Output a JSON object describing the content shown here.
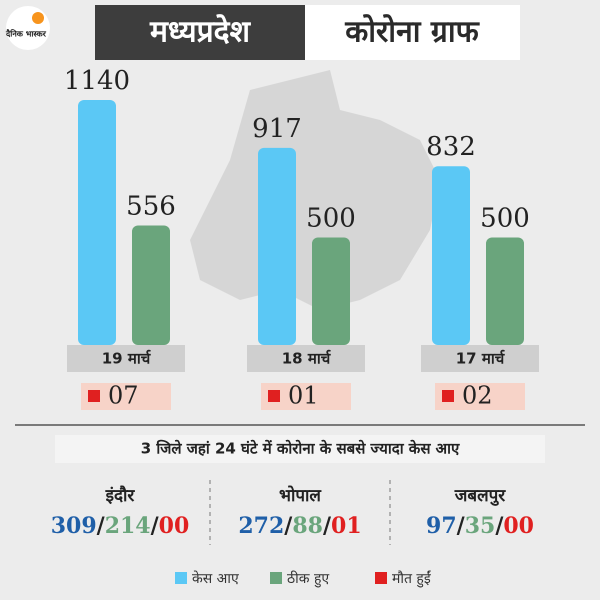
{
  "logo": "दैनिक भास्कर",
  "header": {
    "region": "मध्यप्रदेश",
    "title": "कोरोना ग्राफ"
  },
  "chart_data": {
    "type": "bar",
    "categories": [
      "19 मार्च",
      "18 मार्च",
      "17 मार्च"
    ],
    "series": [
      {
        "name": "केस आए",
        "color": "#5bc8f5",
        "values": [
          1140,
          917,
          832
        ]
      },
      {
        "name": "ठीक हुए",
        "color": "#6aa57c",
        "values": [
          556,
          500,
          500
        ]
      },
      {
        "name": "मौत हुईं",
        "color": "#e02020",
        "values": [
          7,
          1,
          2
        ],
        "value_labels": [
          "07",
          "01",
          "02"
        ]
      }
    ]
  },
  "districts": {
    "title": "3 जिले जहां 24 घंटे में कोरोना के सबसे ज्यादा केस आए",
    "items": [
      {
        "name": "इंदौर",
        "values": [
          309,
          214,
          0
        ],
        "value_labels": [
          "309",
          "214",
          "00"
        ]
      },
      {
        "name": "भोपाल",
        "values": [
          272,
          88,
          1
        ],
        "value_labels": [
          "272",
          "88",
          "01"
        ]
      },
      {
        "name": "जबलपुर",
        "values": [
          97,
          35,
          0
        ],
        "value_labels": [
          "97",
          "35",
          "00"
        ]
      }
    ]
  }
}
